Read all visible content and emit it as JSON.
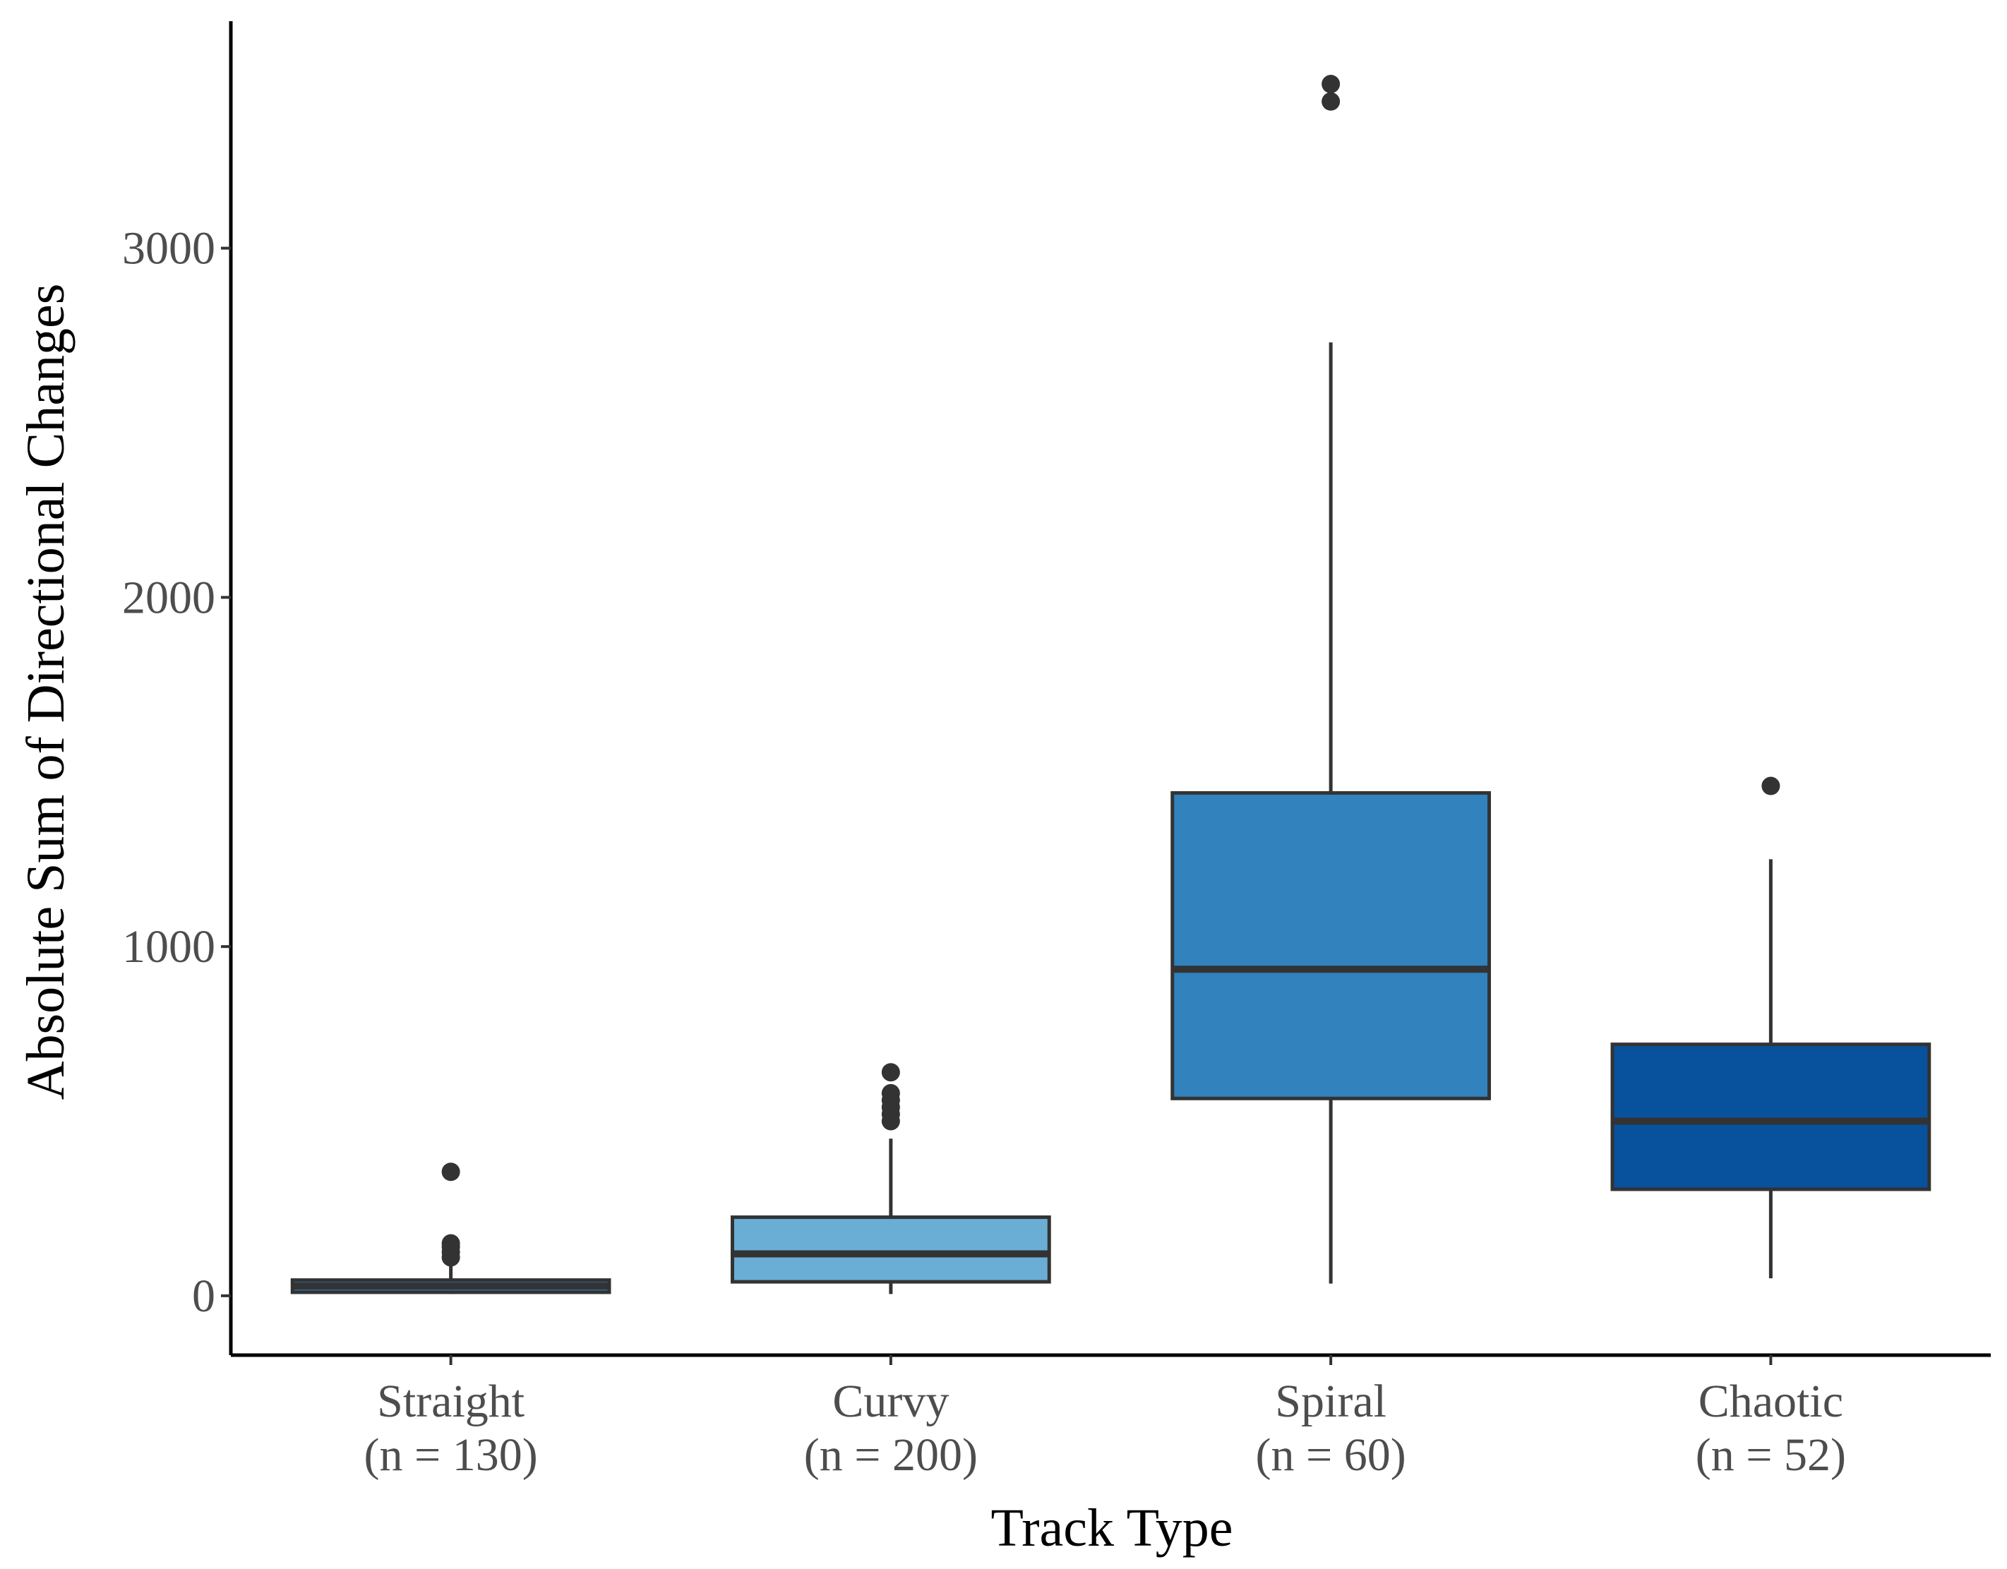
{
  "chart_data": {
    "type": "boxplot",
    "title": "",
    "xlabel": "Track Type",
    "ylabel": "Absolute Sum of Directional Changes",
    "ylim": [
      -170,
      3650
    ],
    "yticks": [
      0,
      1000,
      2000,
      3000
    ],
    "grid": false,
    "legend": "none",
    "box_edge_color": "#333333",
    "categories": [
      {
        "name": "Straight",
        "n_label": "(n = 130)",
        "color": "#2b6ea6",
        "whisker_low": 5,
        "q1": 10,
        "median": 28,
        "q3": 45,
        "whisker_high": 85,
        "outliers": [
          110,
          125,
          140,
          150,
          355
        ]
      },
      {
        "name": "Curvy",
        "n_label": "(n = 200)",
        "color": "#6aaed6",
        "whisker_low": 5,
        "q1": 40,
        "median": 120,
        "q3": 225,
        "whisker_high": 450,
        "outliers": [
          500,
          520,
          540,
          560,
          580,
          640
        ]
      },
      {
        "name": "Spiral",
        "n_label": "(n = 60)",
        "color": "#3182bd",
        "whisker_low": 35,
        "q1": 565,
        "median": 935,
        "q3": 1440,
        "whisker_high": 2730,
        "outliers": [
          3420,
          3470
        ]
      },
      {
        "name": "Chaotic",
        "n_label": "(n = 52)",
        "color": "#08519c",
        "whisker_low": 50,
        "q1": 305,
        "median": 500,
        "q3": 720,
        "whisker_high": 1250,
        "outliers": [
          1460
        ]
      }
    ]
  }
}
